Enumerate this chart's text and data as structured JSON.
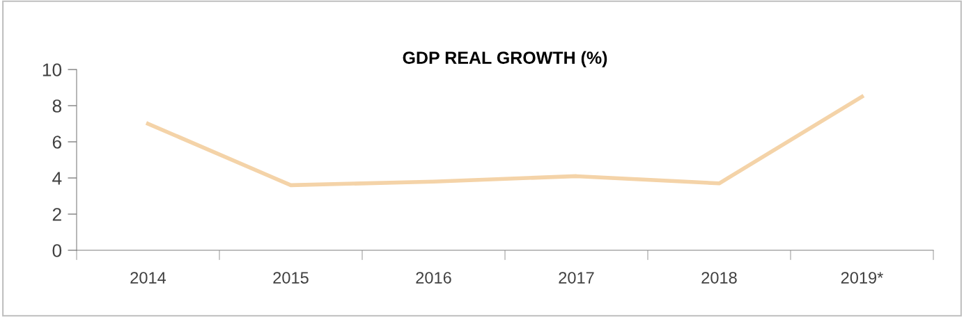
{
  "chart_data": {
    "type": "line",
    "title": "GDP REAL GROWTH (%)",
    "categories": [
      "2014",
      "2015",
      "2016",
      "2017",
      "2018",
      "2019*"
    ],
    "series": [
      {
        "color": "#f4d3a8",
        "values": [
          7.0,
          3.6,
          3.8,
          4.1,
          3.7,
          8.5
        ]
      }
    ],
    "ylim": [
      0,
      10
    ],
    "yticks": [
      0,
      2,
      4,
      6,
      8,
      10
    ],
    "grid": false,
    "marker": "none",
    "line_style": "solid"
  }
}
